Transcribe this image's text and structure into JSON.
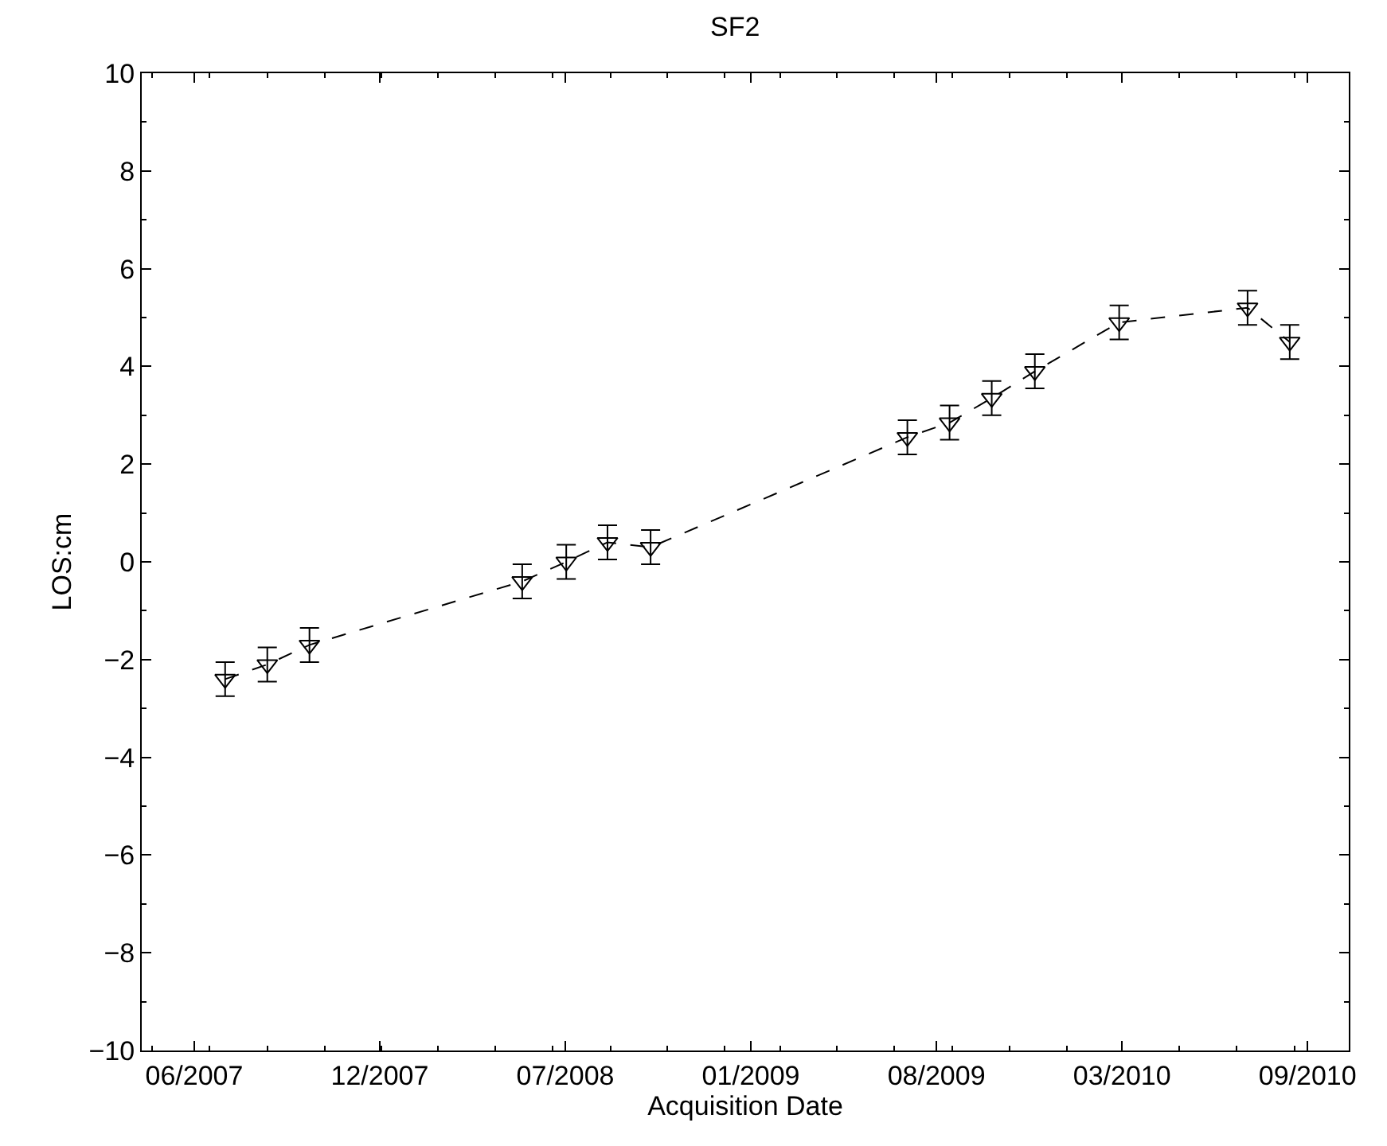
{
  "chart_data": {
    "type": "line",
    "title": "SF2",
    "xlabel": "Acquisition Date",
    "ylabel": "LOS:cm",
    "x": [
      "2007-07-18",
      "2007-09-01",
      "2007-10-16",
      "2008-05-30",
      "2008-07-16",
      "2008-08-29",
      "2008-10-14",
      "2009-07-15",
      "2009-08-29",
      "2009-10-13",
      "2009-11-28",
      "2010-02-26",
      "2010-07-13",
      "2010-08-27"
    ],
    "series": [
      {
        "color": "#000000",
        "values": [
          -2.4,
          -2.1,
          -1.7,
          -0.4,
          0.0,
          0.4,
          0.3,
          2.55,
          2.85,
          3.35,
          3.9,
          4.9,
          5.2,
          4.5
        ],
        "errors": [
          0.35,
          0.35,
          0.35,
          0.35,
          0.35,
          0.35,
          0.35,
          0.35,
          0.35,
          0.35,
          0.35,
          0.35,
          0.35,
          0.35
        ]
      }
    ],
    "marker": "triangle",
    "line_style": "dashed",
    "xlim": [
      "2007-04-20",
      "2010-10-29"
    ],
    "xticks": [
      {
        "value": "2007-06-15",
        "label": "06/2007"
      },
      {
        "value": "2007-12-30",
        "label": "12/2007"
      },
      {
        "value": "2008-07-15",
        "label": "07/2008"
      },
      {
        "value": "2009-01-29",
        "label": "01/2009"
      },
      {
        "value": "2009-08-15",
        "label": "08/2009"
      },
      {
        "value": "2010-03-01",
        "label": "03/2010"
      },
      {
        "value": "2010-09-15",
        "label": "09/2010"
      }
    ],
    "ylim": [
      -10,
      10
    ],
    "yticks": [
      -10,
      -8,
      -6,
      -4,
      -2,
      0,
      2,
      4,
      6,
      8,
      10
    ]
  }
}
